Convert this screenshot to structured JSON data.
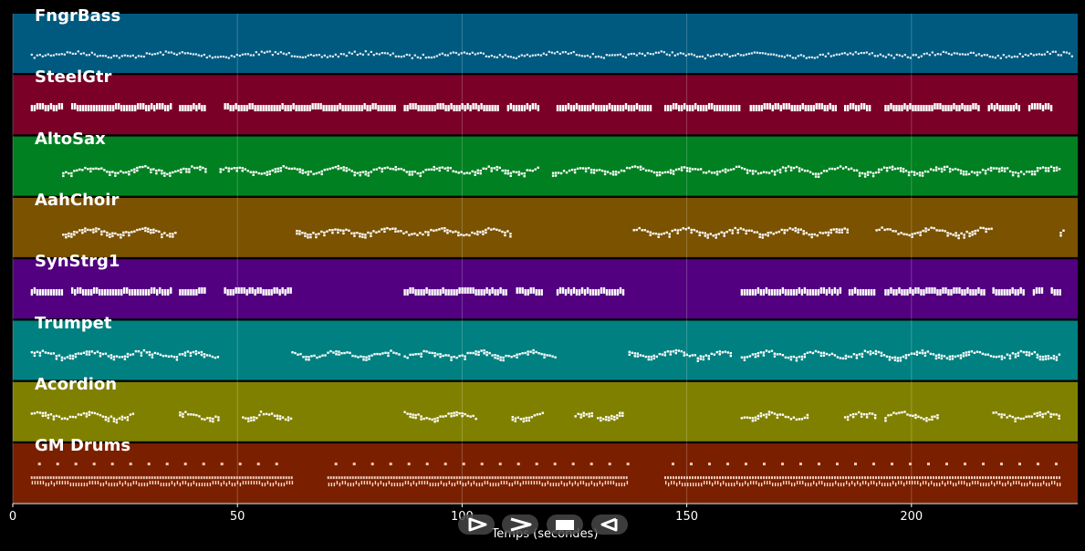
{
  "roll": {
    "time_range": [
      0,
      237
    ],
    "xlabel": "Temps (secondes)",
    "ticks": [
      0,
      50,
      100,
      150,
      200
    ],
    "tracks": [
      {
        "name": "FngrBass",
        "color": "#005a80",
        "style": "line",
        "segments": [
          [
            4,
            236
          ]
        ]
      },
      {
        "name": "SteelGtr",
        "color": "#7a0028",
        "style": "block",
        "segments": [
          [
            4,
            11
          ],
          [
            13,
            35
          ],
          [
            37,
            43
          ],
          [
            47,
            85
          ],
          [
            87,
            108
          ],
          [
            110,
            117
          ],
          [
            121,
            142
          ],
          [
            145,
            162
          ],
          [
            164,
            183
          ],
          [
            185,
            191
          ],
          [
            194,
            215
          ],
          [
            217,
            224
          ],
          [
            226,
            231
          ]
        ]
      },
      {
        "name": "AltoSax",
        "color": "#008020",
        "style": "wave",
        "segments": [
          [
            11,
            43
          ],
          [
            46,
            117
          ],
          [
            120,
            233
          ]
        ]
      },
      {
        "name": "AahChoir",
        "color": "#7a5200",
        "style": "wave",
        "segments": [
          [
            11,
            36
          ],
          [
            63,
            111
          ],
          [
            138,
            186
          ],
          [
            192,
            218
          ],
          [
            233,
            234
          ]
        ]
      },
      {
        "name": "SynStrg1",
        "color": "#520080",
        "style": "block",
        "segments": [
          [
            4,
            11
          ],
          [
            13,
            35
          ],
          [
            37,
            43
          ],
          [
            47,
            62
          ],
          [
            87,
            110
          ],
          [
            112,
            118
          ],
          [
            121,
            136
          ],
          [
            162,
            184
          ],
          [
            186,
            192
          ],
          [
            194,
            216
          ],
          [
            218,
            225
          ],
          [
            227,
            229
          ],
          [
            231,
            233
          ]
        ]
      },
      {
        "name": "Trumpet",
        "color": "#008080",
        "style": "wave",
        "segments": [
          [
            4,
            46
          ],
          [
            62,
            86
          ],
          [
            87,
            121
          ],
          [
            137,
            160
          ],
          [
            162,
            233
          ]
        ]
      },
      {
        "name": "Acordion",
        "color": "#808000",
        "style": "wave",
        "segments": [
          [
            4,
            27
          ],
          [
            37,
            46
          ],
          [
            51,
            55
          ],
          [
            55,
            62
          ],
          [
            87,
            103
          ],
          [
            111,
            118
          ],
          [
            125,
            129
          ],
          [
            130,
            136
          ],
          [
            162,
            177
          ],
          [
            185,
            192
          ],
          [
            194,
            206
          ],
          [
            218,
            233
          ]
        ]
      },
      {
        "name": "GM Drums",
        "color": "#7a2000",
        "style": "drums",
        "segments": [
          [
            4,
            62
          ],
          [
            70,
            137
          ],
          [
            145,
            233
          ]
        ]
      }
    ]
  },
  "controls": [
    {
      "name": "play-button",
      "icon": "play-icon"
    },
    {
      "name": "fast-forward-button",
      "icon": "fast-forward-icon"
    },
    {
      "name": "stop-button",
      "icon": "stop-icon"
    },
    {
      "name": "rewind-button",
      "icon": "rewind-icon"
    }
  ]
}
